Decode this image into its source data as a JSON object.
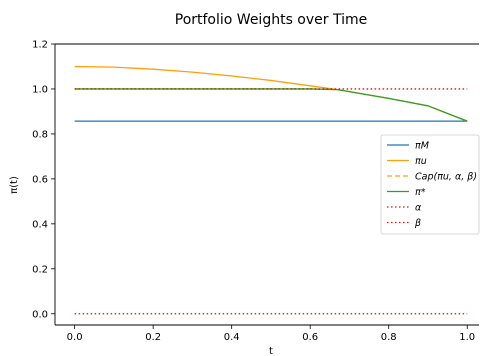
{
  "chart_data": {
    "type": "line",
    "title": "Portfolio Weights over Time",
    "xlabel": "t",
    "ylabel": "π(t)",
    "xlim": [
      -0.05,
      1.03
    ],
    "ylim": [
      -0.05,
      1.2
    ],
    "xticks": [
      "0.0",
      "0.2",
      "0.4",
      "0.6",
      "0.8",
      "1.0"
    ],
    "yticks": [
      "0.0",
      "0.2",
      "0.4",
      "0.6",
      "0.8",
      "1.0",
      "1.2"
    ],
    "grid": false,
    "legend_position": "center-right",
    "series": [
      {
        "name": "π_M",
        "legend_label": "πM",
        "color": "#1f77b4",
        "style": "solid",
        "x": [
          0,
          1
        ],
        "y": [
          0.857,
          0.857
        ]
      },
      {
        "name": "π_u",
        "legend_label": "πu",
        "color": "#ff9f0e",
        "style": "solid",
        "x": [
          0,
          0.1,
          0.2,
          0.3,
          0.4,
          0.5,
          0.6,
          0.67,
          0.7,
          0.8,
          0.9,
          1.0
        ],
        "y": [
          1.1,
          1.097,
          1.088,
          1.075,
          1.058,
          1.038,
          1.014,
          0.997,
          0.988,
          0.958,
          0.925,
          0.857
        ]
      },
      {
        "name": "Cap(π_u, α, β)",
        "legend_label": "Cap(πu, α, β)",
        "color": "#ff9f0e",
        "style": "dashed",
        "x": [
          0,
          0.1,
          0.2,
          0.3,
          0.4,
          0.5,
          0.6,
          0.67,
          0.7,
          0.8,
          0.9,
          1.0
        ],
        "y": [
          1.0,
          1.0,
          1.0,
          1.0,
          1.0,
          1.0,
          1.0,
          0.997,
          0.988,
          0.958,
          0.925,
          0.857
        ]
      },
      {
        "name": "π*",
        "legend_label": "π*",
        "color": "#2ca02c",
        "style": "solid",
        "x": [
          0,
          0.1,
          0.2,
          0.3,
          0.4,
          0.5,
          0.6,
          0.67,
          0.7,
          0.8,
          0.9,
          1.0
        ],
        "y": [
          1.0,
          1.0,
          1.0,
          1.0,
          1.0,
          1.0,
          1.0,
          0.997,
          0.988,
          0.958,
          0.925,
          0.857
        ]
      },
      {
        "name": "α",
        "legend_label": "α",
        "color": "#ff0000",
        "style": "dotted",
        "x": [
          0,
          1
        ],
        "y": [
          1.0,
          1.0
        ]
      },
      {
        "name": "β",
        "legend_label": "β",
        "color": "#ff0000",
        "style": "dotted",
        "x": [
          0,
          1
        ],
        "y": [
          0.0,
          0.0
        ]
      }
    ]
  }
}
